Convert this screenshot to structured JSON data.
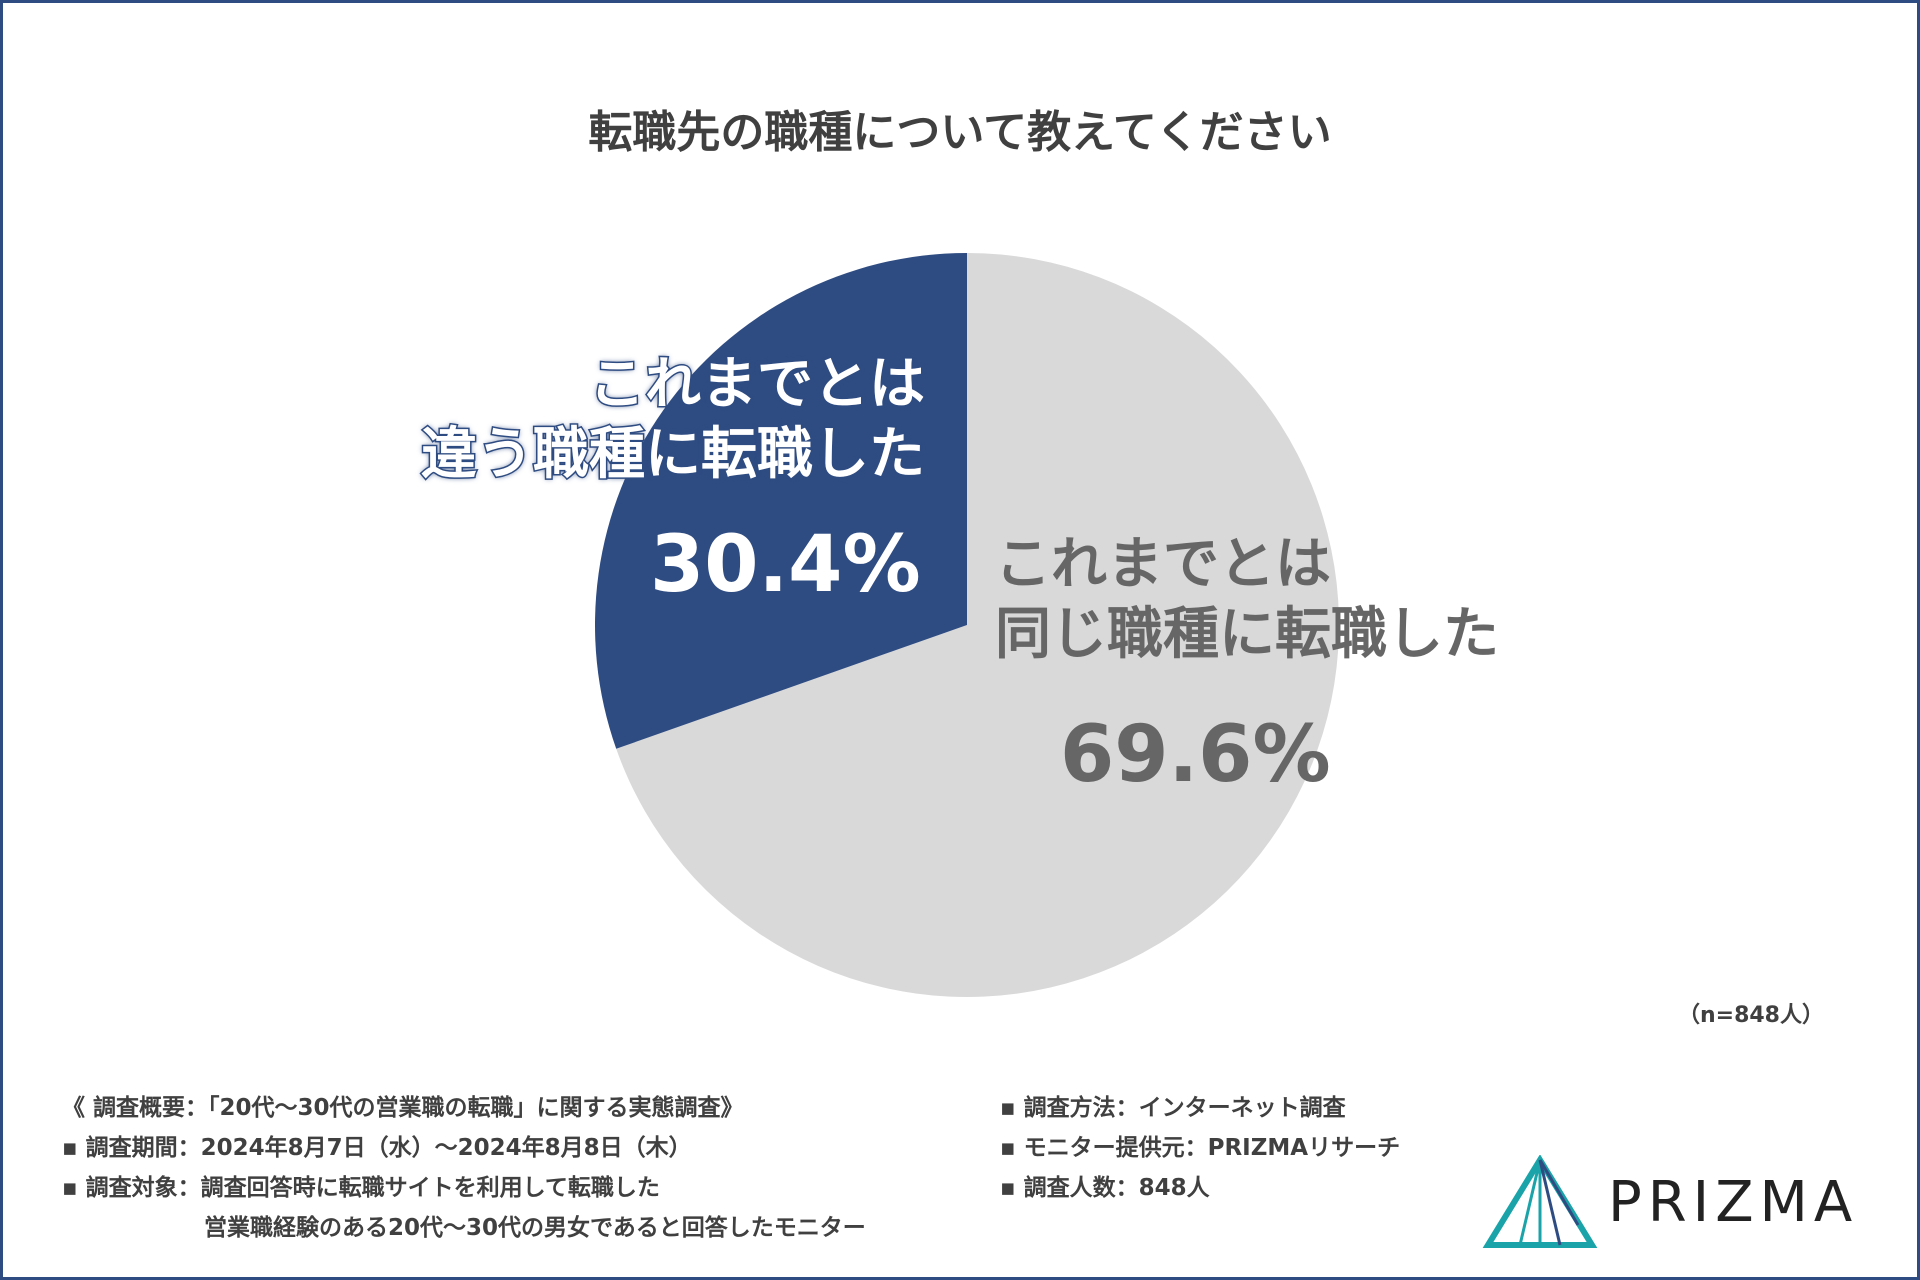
{
  "chart_data": {
    "type": "pie",
    "title": "転職先の職種について教えてください",
    "slices": [
      {
        "label": "これまでとは違う職種に転職した",
        "value": 30.4,
        "display": "30.4%",
        "color": "#2f4c82"
      },
      {
        "label": "これまでとは同じ職種に転職した",
        "value": 69.6,
        "display": "69.6%",
        "color": "#d9d9d9"
      }
    ],
    "sample_size": "（n=848人）"
  },
  "labels": {
    "diff_line1": "これまでとは",
    "diff_line2": "違う職種に転職した",
    "same_line1": "これまでとは",
    "same_line2": "同じ職種に転職した"
  },
  "notes": {
    "left": [
      "《 調査概要：「20代～30代の営業職の転職」に関する実態調査》",
      "▪ 調査期間：2024年8月7日（水）～2024年8月8日（木）",
      "▪ 調査対象：調査回答時に転職サイトを利用して転職した",
      "営業職経験のある20代～30代の男女であると回答したモニター"
    ],
    "right": [
      "▪ 調査方法：インターネット調査",
      "▪ モニター提供元：PRIZMAリサーチ",
      "▪ 調査人数：848人"
    ]
  },
  "brand": {
    "name": "PRIZMA",
    "colors": [
      "#1aa3a8",
      "#2f4c82"
    ]
  }
}
